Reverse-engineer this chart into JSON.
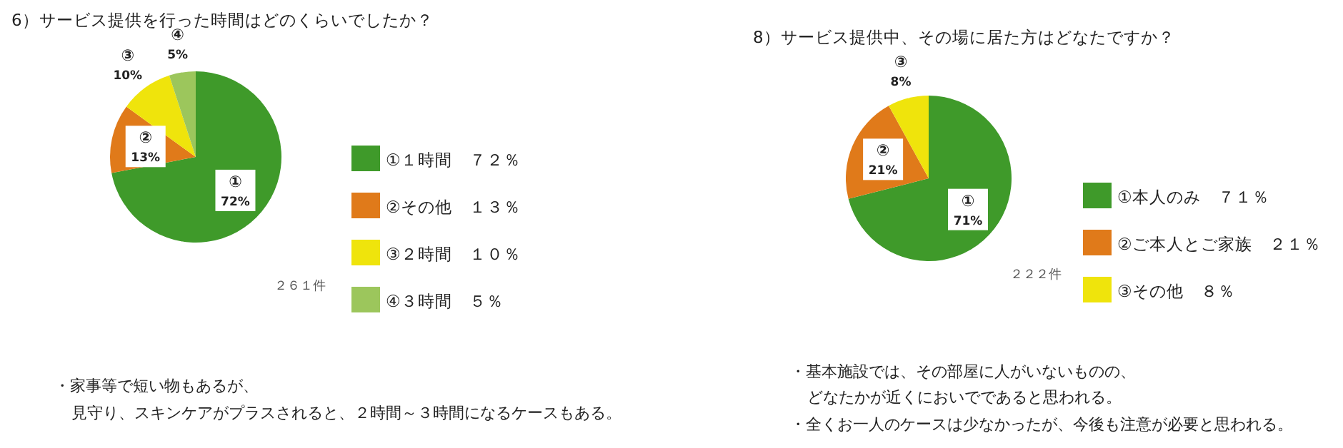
{
  "chart_data": [
    {
      "type": "pie",
      "title": "6）サービス提供を行った時間はどのくらいでしたか？",
      "categories": [
        "①１時間　７２％",
        "②その他　１３％",
        "③２時間　１０％",
        "④３時間　５％"
      ],
      "values": [
        72,
        13,
        10,
        5
      ],
      "colors": [
        "#3f9a2a",
        "#e07a1a",
        "#efe40c",
        "#9cc65c"
      ],
      "value_labels": [
        "① 72%",
        "② 13%",
        "③ 10%",
        "④ 5%"
      ],
      "legend": "right",
      "annotations": [
        "２６１件",
        "・家事等で短い物もあるが、",
        "見守り、スキンケアがプラスされると、２時間～３時間になるケースもある。"
      ]
    },
    {
      "type": "pie",
      "title": "8）サービス提供中、その場に居た方はどなたですか？",
      "categories": [
        "①本人のみ　７１％",
        "②ご本人とご家族　２１％",
        "③その他　８％"
      ],
      "values": [
        71,
        21,
        8
      ],
      "colors": [
        "#3f9a2a",
        "#e07a1a",
        "#efe40c"
      ],
      "value_labels": [
        "① 71%",
        "② 21%",
        "③ 8%"
      ],
      "legend": "right",
      "annotations": [
        "２２２件",
        "・基本施設では、その部屋に人がいないものの、",
        "どなたかが近くにおいでであると思われる。",
        "・全くお一人のケースは少なかったが、今後も注意が必要と思われる。"
      ]
    }
  ]
}
